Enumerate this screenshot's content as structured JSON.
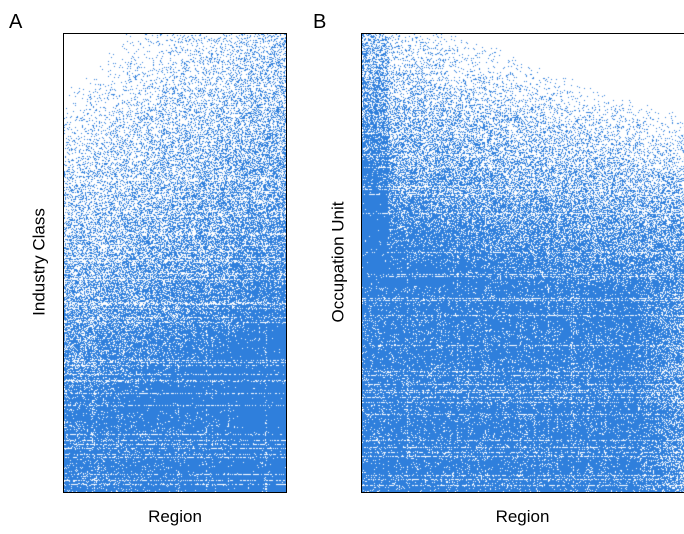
{
  "chart_data": [
    {
      "type": "heatmap",
      "panel_label": "A",
      "xlabel": "Region",
      "ylabel": "Industry Class",
      "color": "#2f7fdc",
      "background": "#ffffff",
      "grid": false,
      "legend": "none"
    },
    {
      "type": "heatmap",
      "panel_label": "B",
      "xlabel": "Region",
      "ylabel": "Occupation Unit",
      "color": "#2f7fdc",
      "background": "#ffffff",
      "grid": false,
      "legend": "none"
    }
  ]
}
